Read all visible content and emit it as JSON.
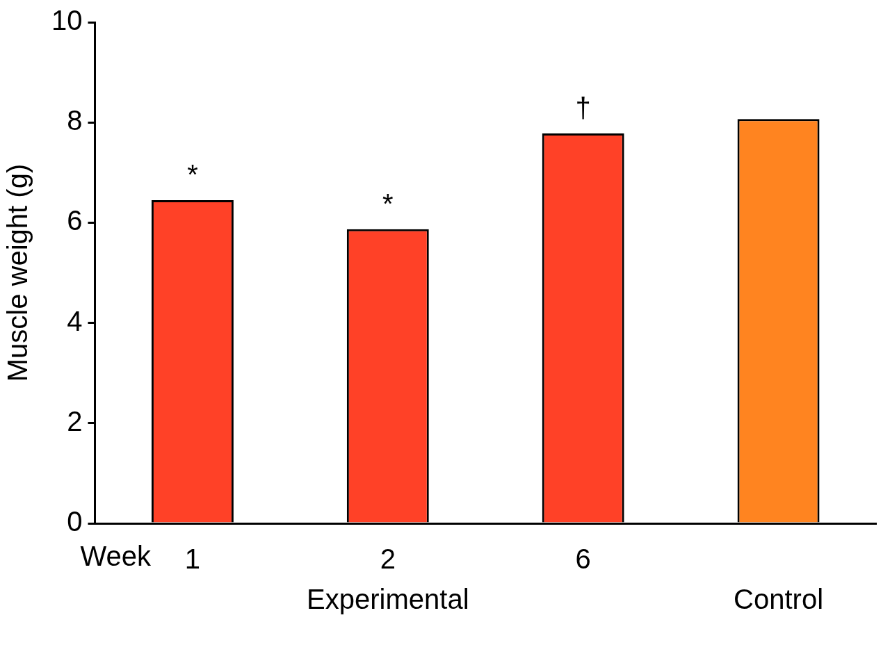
{
  "chart_data": {
    "type": "bar",
    "ylabel": "Muscle weight (g)",
    "xlabel": "Week",
    "categories": [
      "1",
      "2",
      "6",
      null
    ],
    "values": [
      6.45,
      5.87,
      7.78,
      8.07
    ],
    "colors": [
      "#ff4127",
      "#ff4127",
      "#ff4127",
      "#ff8420"
    ],
    "annotations": [
      "*",
      "*",
      "†",
      null
    ],
    "groups": [
      {
        "label": "Experimental",
        "span": 3
      },
      {
        "label": "Control",
        "span": 1
      }
    ],
    "ylim": [
      0,
      10
    ],
    "yticks": [
      0,
      2,
      4,
      6,
      8,
      10
    ],
    "grid": false
  }
}
